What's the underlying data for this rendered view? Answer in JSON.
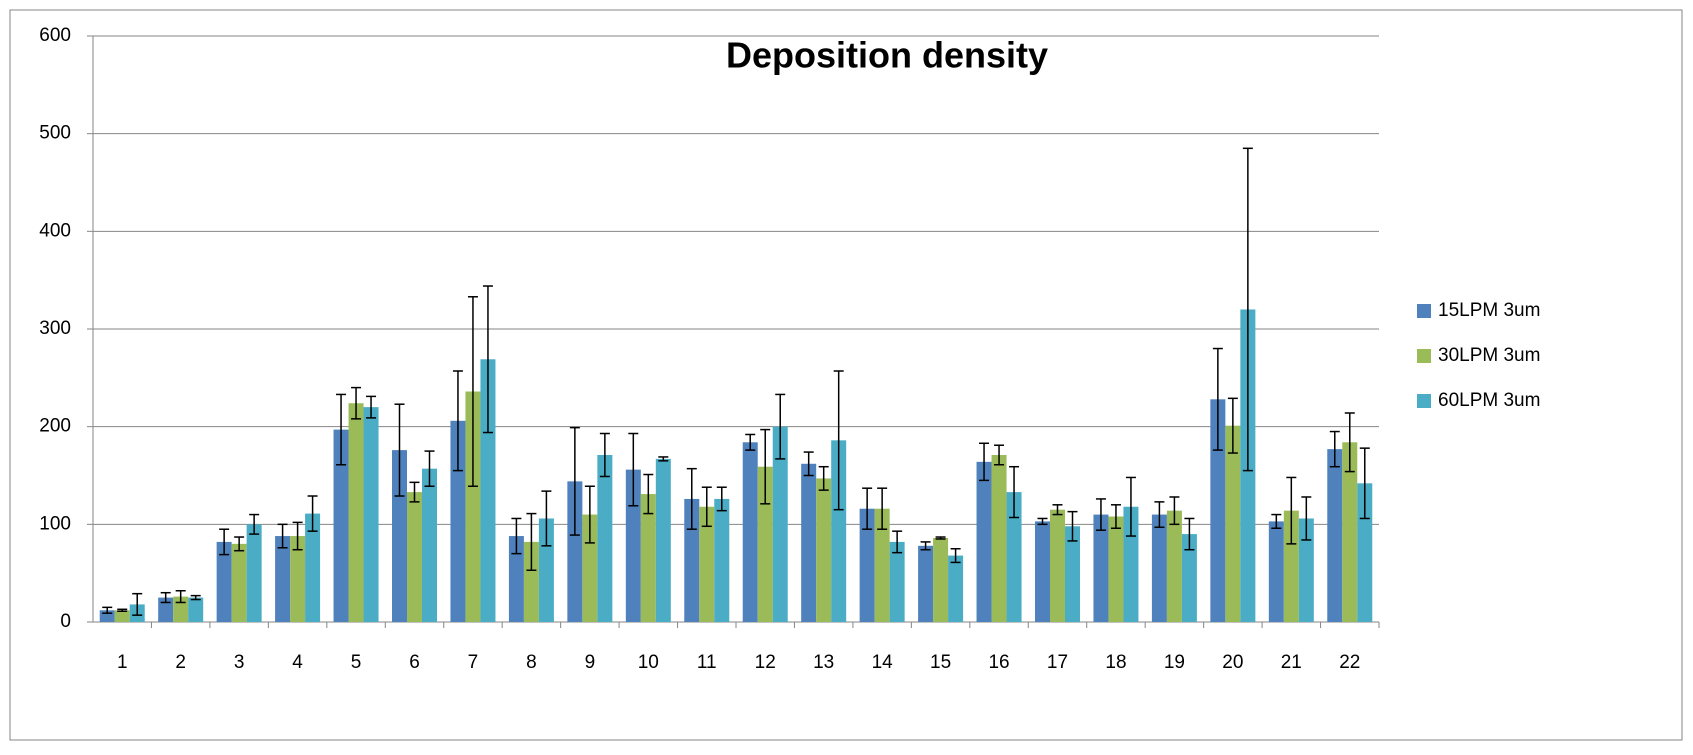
{
  "chart_data": {
    "type": "bar",
    "title": "Deposition density",
    "categories": [
      "1",
      "2",
      "3",
      "4",
      "5",
      "6",
      "7",
      "8",
      "9",
      "10",
      "11",
      "12",
      "13",
      "14",
      "15",
      "16",
      "17",
      "18",
      "19",
      "20",
      "21",
      "22"
    ],
    "series": [
      {
        "name": "15LPM 3um",
        "color": "#4f81bd",
        "values": [
          12,
          25,
          82,
          88,
          197,
          176,
          206,
          88,
          144,
          156,
          126,
          184,
          162,
          116,
          78,
          164,
          103,
          110,
          110,
          228,
          103,
          177
        ],
        "errors": [
          3,
          5,
          13,
          12,
          36,
          47,
          51,
          18,
          55,
          37,
          31,
          8,
          12,
          21,
          4,
          19,
          3,
          16,
          13,
          52,
          7,
          18
        ]
      },
      {
        "name": "30LPM 3um",
        "color": "#9bbb59",
        "values": [
          12,
          26,
          80,
          88,
          224,
          133,
          236,
          82,
          110,
          131,
          118,
          159,
          147,
          116,
          86,
          171,
          115,
          108,
          114,
          201,
          114,
          184
        ],
        "errors": [
          1,
          6,
          7,
          14,
          16,
          10,
          97,
          29,
          29,
          20,
          20,
          38,
          12,
          21,
          1,
          10,
          5,
          12,
          14,
          28,
          34,
          30
        ]
      },
      {
        "name": "60LPM 3um",
        "color": "#4bacc6",
        "values": [
          18,
          25,
          100,
          111,
          220,
          157,
          269,
          106,
          171,
          167,
          126,
          200,
          186,
          82,
          68,
          133,
          98,
          118,
          90,
          320,
          106,
          142
        ],
        "errors": [
          11,
          2,
          10,
          18,
          11,
          18,
          75,
          28,
          22,
          2,
          12,
          33,
          71,
          11,
          7,
          26,
          15,
          30,
          16,
          165,
          22,
          36
        ]
      }
    ],
    "ylim": [
      0,
      600
    ],
    "yticks": [
      0,
      100,
      200,
      300,
      400,
      500,
      600
    ],
    "grid": true,
    "legend": "right"
  }
}
